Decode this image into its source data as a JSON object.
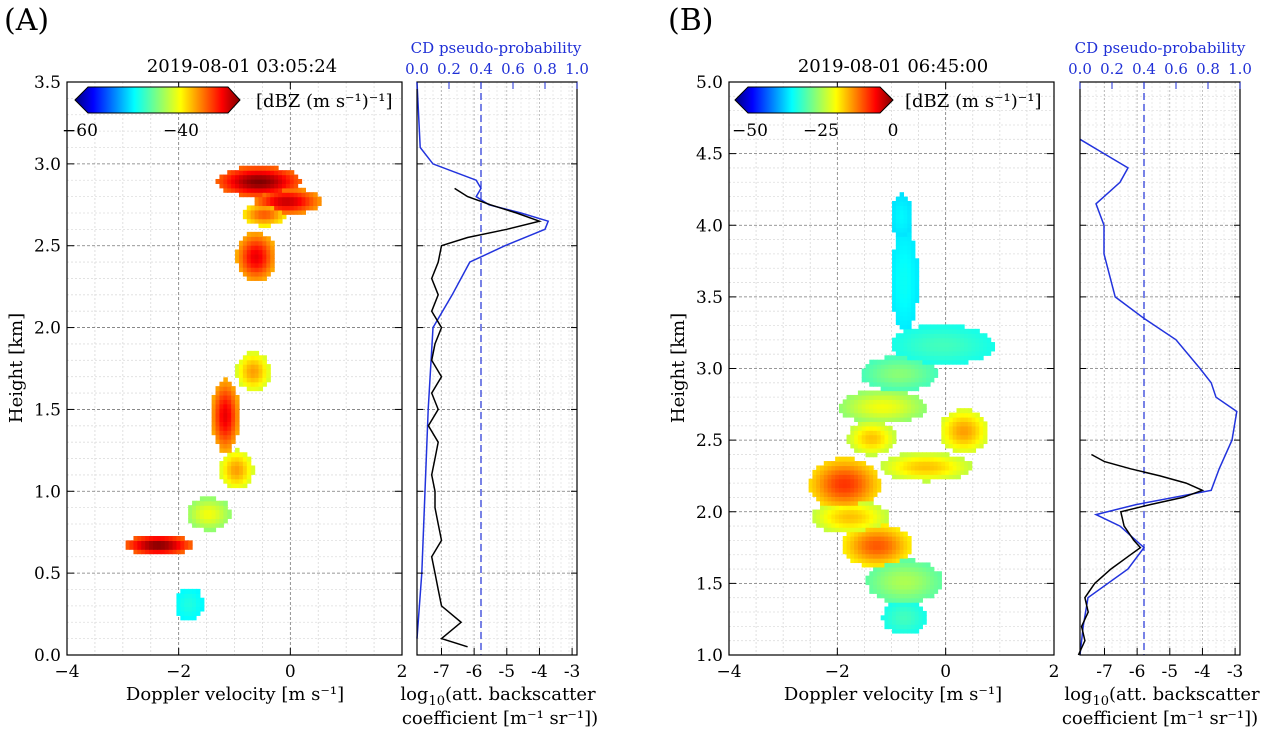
{
  "panels": [
    {
      "letter": "(A)",
      "timestamp": "2019-08-01 03:05:24",
      "ylabel": "Height [km]",
      "xlabel": "Doppler velocity [m s⁻¹]",
      "colorbar_label": "[dBZ (m s⁻¹)⁻¹]",
      "colorbar_ticks": [
        "−60",
        "−40"
      ],
      "xlim": [
        -4,
        2
      ],
      "ylim": [
        0.0,
        3.5
      ],
      "xticks": [
        "−4",
        "−2",
        "0",
        "2"
      ],
      "yticks": [
        "0.0",
        "0.5",
        "1.0",
        "1.5",
        "2.0",
        "2.5",
        "3.0",
        "3.5"
      ],
      "top_axis_label": "CD pseudo-probability",
      "top_ticks": [
        "0.0",
        "0.2",
        "0.4",
        "0.6",
        "0.8",
        "1.0"
      ],
      "bottom_ticks": [
        "-7",
        "-6",
        "-5",
        "-4",
        "-3"
      ],
      "side_xlabel_1": "log",
      "side_xlabel_sub": "10",
      "side_xlabel_2": "(att. backscatter",
      "side_xlabel_3": "coefficient [m⁻¹ sr⁻¹])"
    },
    {
      "letter": "(B)",
      "timestamp": "2019-08-01 06:45:00",
      "ylabel": "Height [km]",
      "xlabel": "Doppler velocity [m s⁻¹]",
      "colorbar_label": "[dBZ (m s⁻¹)⁻¹]",
      "colorbar_ticks": [
        "−50",
        "−25",
        "0"
      ],
      "xlim": [
        -4,
        2
      ],
      "ylim": [
        1.0,
        5.0
      ],
      "xticks": [
        "−4",
        "−2",
        "0",
        "2"
      ],
      "yticks": [
        "1.0",
        "1.5",
        "2.0",
        "2.5",
        "3.0",
        "3.5",
        "4.0",
        "4.5",
        "5.0"
      ],
      "top_axis_label": "CD pseudo-probability",
      "top_ticks": [
        "0.0",
        "0.2",
        "0.4",
        "0.6",
        "0.8",
        "1.0"
      ],
      "bottom_ticks": [
        "-7",
        "-6",
        "-5",
        "-4",
        "-3"
      ],
      "side_xlabel_1": "log",
      "side_xlabel_sub": "10",
      "side_xlabel_2": "(att. backscatter",
      "side_xlabel_3": "coefficient [m⁻¹ sr⁻¹])"
    }
  ],
  "chart_data": [
    {
      "type": "heatmap",
      "panel": "A",
      "x_units": "m/s",
      "y_units": "km",
      "colormap": "jet",
      "blobs": [
        {
          "x": -0.6,
          "y": 2.88,
          "rx": 0.75,
          "ry": 0.09,
          "peak": 1.0
        },
        {
          "x": -0.1,
          "y": 2.76,
          "rx": 0.6,
          "ry": 0.08,
          "peak": 0.9
        },
        {
          "x": -0.5,
          "y": 2.68,
          "rx": 0.4,
          "ry": 0.07,
          "peak": 0.7
        },
        {
          "x": -0.65,
          "y": 2.42,
          "rx": 0.35,
          "ry": 0.15,
          "peak": 0.85
        },
        {
          "x": -0.7,
          "y": 1.72,
          "rx": 0.3,
          "ry": 0.12,
          "peak": 0.6
        },
        {
          "x": -1.2,
          "y": 1.45,
          "rx": 0.25,
          "ry": 0.22,
          "peak": 0.85
        },
        {
          "x": -1.0,
          "y": 1.12,
          "rx": 0.3,
          "ry": 0.12,
          "peak": 0.6
        },
        {
          "x": -1.5,
          "y": 0.85,
          "rx": 0.4,
          "ry": 0.1,
          "peak": 0.45
        },
        {
          "x": -2.4,
          "y": 0.66,
          "rx": 0.6,
          "ry": 0.06,
          "peak": 1.0
        },
        {
          "x": -1.85,
          "y": 0.3,
          "rx": 0.25,
          "ry": 0.1,
          "peak": 0.15
        }
      ],
      "lidar_backscatter": {
        "y": [
          0.05,
          0.1,
          0.2,
          0.3,
          0.4,
          0.5,
          0.6,
          0.7,
          0.8,
          0.9,
          1.0,
          1.1,
          1.2,
          1.3,
          1.4,
          1.5,
          1.6,
          1.7,
          1.8,
          1.9,
          2.0,
          2.1,
          2.2,
          2.3,
          2.4,
          2.5,
          2.55,
          2.6,
          2.65,
          2.7,
          2.75,
          2.8,
          2.85
        ],
        "x": [
          -6.2,
          -7.0,
          -6.4,
          -7.0,
          -7.1,
          -7.2,
          -7.3,
          -7.0,
          -7.1,
          -7.2,
          -7.2,
          -7.3,
          -7.2,
          -7.1,
          -7.4,
          -7.1,
          -7.3,
          -7.0,
          -7.3,
          -7.2,
          -7.0,
          -7.3,
          -7.1,
          -7.3,
          -7.1,
          -7.0,
          -6.2,
          -5.0,
          -4.0,
          -4.7,
          -5.5,
          -6.2,
          -6.6
        ]
      },
      "cd_probability": {
        "y": [
          0.1,
          0.5,
          1.0,
          1.5,
          2.0,
          2.2,
          2.4,
          2.5,
          2.6,
          2.65,
          2.7,
          2.75,
          2.8,
          2.85,
          2.9,
          3.0,
          3.1,
          3.5
        ],
        "x": [
          0.0,
          0.03,
          0.05,
          0.07,
          0.1,
          0.22,
          0.33,
          0.55,
          0.8,
          0.82,
          0.65,
          0.45,
          0.37,
          0.4,
          0.37,
          0.1,
          0.02,
          0.0
        ]
      },
      "cd_threshold": 0.4
    },
    {
      "type": "heatmap",
      "panel": "B",
      "x_units": "m/s",
      "y_units": "km",
      "colormap": "jet",
      "blobs": [
        {
          "x": -0.85,
          "y": 4.05,
          "rx": 0.2,
          "ry": 0.15,
          "peak": 0.1
        },
        {
          "x": -0.8,
          "y": 3.6,
          "rx": 0.25,
          "ry": 0.35,
          "peak": 0.12
        },
        {
          "x": -0.1,
          "y": 3.15,
          "rx": 0.95,
          "ry": 0.14,
          "peak": 0.2
        },
        {
          "x": -0.9,
          "y": 2.95,
          "rx": 0.7,
          "ry": 0.12,
          "peak": 0.3
        },
        {
          "x": -1.2,
          "y": 2.72,
          "rx": 0.8,
          "ry": 0.12,
          "peak": 0.45
        },
        {
          "x": 0.3,
          "y": 2.55,
          "rx": 0.45,
          "ry": 0.15,
          "peak": 0.6
        },
        {
          "x": -1.4,
          "y": 2.5,
          "rx": 0.45,
          "ry": 0.12,
          "peak": 0.55
        },
        {
          "x": -0.4,
          "y": 2.3,
          "rx": 0.85,
          "ry": 0.1,
          "peak": 0.55
        },
        {
          "x": -1.9,
          "y": 2.18,
          "rx": 0.65,
          "ry": 0.18,
          "peak": 0.75
        },
        {
          "x": -1.8,
          "y": 1.95,
          "rx": 0.7,
          "ry": 0.12,
          "peak": 0.55
        },
        {
          "x": -1.3,
          "y": 1.75,
          "rx": 0.65,
          "ry": 0.15,
          "peak": 0.7
        },
        {
          "x": -0.8,
          "y": 1.5,
          "rx": 0.7,
          "ry": 0.15,
          "peak": 0.35
        },
        {
          "x": -0.8,
          "y": 1.25,
          "rx": 0.4,
          "ry": 0.12,
          "peak": 0.2
        }
      ],
      "lidar_backscatter": {
        "y": [
          1.0,
          1.1,
          1.2,
          1.3,
          1.4,
          1.5,
          1.6,
          1.7,
          1.75,
          1.8,
          1.9,
          2.0,
          2.05,
          2.1,
          2.15,
          2.2,
          2.25,
          2.3,
          2.35,
          2.4
        ],
        "x": [
          -7.8,
          -7.6,
          -7.7,
          -7.5,
          -7.6,
          -7.3,
          -6.8,
          -6.2,
          -5.9,
          -6.1,
          -6.4,
          -6.5,
          -5.6,
          -4.6,
          -4.0,
          -4.5,
          -5.3,
          -6.2,
          -7.0,
          -7.4
        ]
      },
      "cd_probability": {
        "y": [
          1.0,
          1.2,
          1.4,
          1.6,
          1.75,
          1.9,
          1.98,
          2.05,
          2.15,
          2.3,
          2.5,
          2.7,
          2.8,
          2.9,
          3.0,
          3.2,
          3.35,
          3.5,
          3.8,
          4.0,
          4.15,
          4.3,
          4.4,
          4.5,
          4.6
        ],
        "x": [
          0.0,
          0.02,
          0.05,
          0.3,
          0.4,
          0.25,
          0.1,
          0.35,
          0.82,
          0.87,
          0.95,
          0.98,
          0.85,
          0.82,
          0.75,
          0.6,
          0.4,
          0.22,
          0.15,
          0.15,
          0.1,
          0.25,
          0.3,
          0.15,
          0.0
        ]
      },
      "cd_threshold": 0.4
    }
  ]
}
